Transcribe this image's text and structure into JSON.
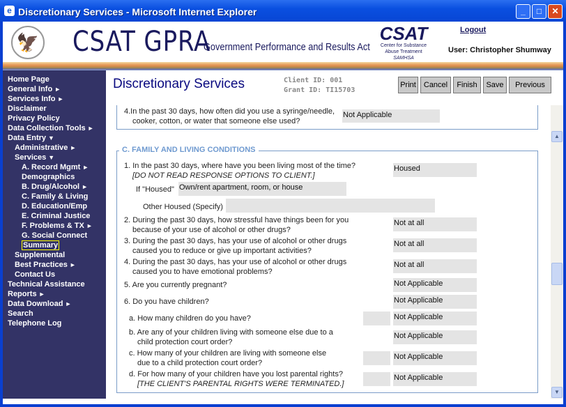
{
  "window": {
    "title": "Discretionary Services - Microsoft Internet Explorer"
  },
  "header": {
    "title": "CSAT GPRA",
    "subtitle": "Government Performance and Results Act",
    "csat_logo": "CSAT",
    "csat_lines": [
      "Center for Substance",
      "Abuse Treatment",
      "SAMHSA"
    ],
    "logout": "Logout",
    "user": "User: Christopher Shumway"
  },
  "sidebar": {
    "items": [
      {
        "label": "Home Page",
        "level": 0,
        "arrow": ""
      },
      {
        "label": "General Info",
        "level": 0,
        "arrow": "►"
      },
      {
        "label": "Services Info",
        "level": 0,
        "arrow": "►"
      },
      {
        "label": "Disclaimer",
        "level": 0,
        "arrow": ""
      },
      {
        "label": "Privacy Policy",
        "level": 0,
        "arrow": ""
      },
      {
        "label": "Data Collection Tools",
        "level": 0,
        "arrow": "►"
      },
      {
        "label": "Data Entry",
        "level": 0,
        "arrow": "▼"
      },
      {
        "label": "Administrative",
        "level": 1,
        "arrow": "►"
      },
      {
        "label": "Services",
        "level": 1,
        "arrow": "▼"
      },
      {
        "label": "A. Record Mgmt",
        "level": 2,
        "arrow": "►"
      },
      {
        "label": "Demographics",
        "level": 2,
        "arrow": ""
      },
      {
        "label": "B. Drug/Alcohol",
        "level": 2,
        "arrow": "►"
      },
      {
        "label": "C. Family & Living",
        "level": 2,
        "arrow": ""
      },
      {
        "label": "D. Education/Emp",
        "level": 2,
        "arrow": ""
      },
      {
        "label": "E. Criminal Justice",
        "level": 2,
        "arrow": ""
      },
      {
        "label": "F. Problems & TX",
        "level": 2,
        "arrow": "►"
      },
      {
        "label": "G. Social Connect",
        "level": 2,
        "arrow": ""
      },
      {
        "label": "Summary",
        "level": 2,
        "arrow": "",
        "selected": true
      },
      {
        "label": "Supplemental",
        "level": 1,
        "arrow": ""
      },
      {
        "label": "Best Practices",
        "level": 1,
        "arrow": "►"
      },
      {
        "label": "Contact Us",
        "level": 1,
        "arrow": ""
      },
      {
        "label": "Technical Assistance",
        "level": 0,
        "arrow": ""
      },
      {
        "label": "Reports",
        "level": 0,
        "arrow": "►"
      },
      {
        "label": "Data Download",
        "level": 0,
        "arrow": "►"
      },
      {
        "label": "Search",
        "level": 0,
        "arrow": ""
      },
      {
        "label": "Telephone Log",
        "level": 0,
        "arrow": ""
      }
    ]
  },
  "page": {
    "title": "Discretionary Services",
    "client_id": "Client ID: 001",
    "grant_id": "Grant ID: TI15703",
    "buttons": {
      "print": "Print",
      "cancel": "Cancel",
      "finish": "Finish",
      "save": "Save",
      "previous": "Previous"
    }
  },
  "prev_section": {
    "q4_line1": "4.In the past 30 days, how often did you use a syringe/needle,",
    "q4_line2": "cooker, cotton, or water that someone else used?",
    "q4_answer": "Not Applicable"
  },
  "section_c": {
    "legend": "C. FAMILY AND LIVING CONDITIONS",
    "q1_line1": "1. In the past 30 days, where have you been living most of the time?",
    "q1_line2": "[DO NOT READ RESPONSE OPTIONS TO CLIENT.]",
    "q1_answer": "Housed",
    "housed_label": "If \"Housed\"",
    "housed_answer": "Own/rent apartment, room, or house",
    "other_label": "Other Housed (Specify)",
    "other_answer": "",
    "q2_line1": "2. During the past 30 days, how stressful have things been for you",
    "q2_line2": "because of your use of alcohol or other drugs?",
    "q2_answer": "Not at all",
    "q3_line1": "3. During the past 30 days, has your use of alcohol or other drugs",
    "q3_line2": "caused you to reduce or give up important activities?",
    "q3_answer": "Not at all",
    "q4_line1": "4. During the past 30 days, has your use of alcohol or other drugs",
    "q4_line2": "caused you to have emotional problems?",
    "q4_answer": "Not at all",
    "q5": "5. Are you currently pregnant?",
    "q5_answer": "Not Applicable",
    "q6": "6. Do you have children?",
    "q6_answer": "Not Applicable",
    "q6a": "a. How many children do you have?",
    "q6a_answer": "Not Applicable",
    "q6b_line1": "b. Are any of your children living with someone else due to a",
    "q6b_line2": "child protection court order?",
    "q6b_answer": "Not Applicable",
    "q6c_line1": "c. How many of your children are living with someone else",
    "q6c_line2": "due to a child protection court order?",
    "q6c_answer": "Not Applicable",
    "q6d_line1": "d. For how many of your children have you lost parental rights?",
    "q6d_line2": "[THE CLIENT'S PARENTAL RIGHTS WERE TERMINATED.]",
    "q6d_answer": "Not Applicable"
  }
}
